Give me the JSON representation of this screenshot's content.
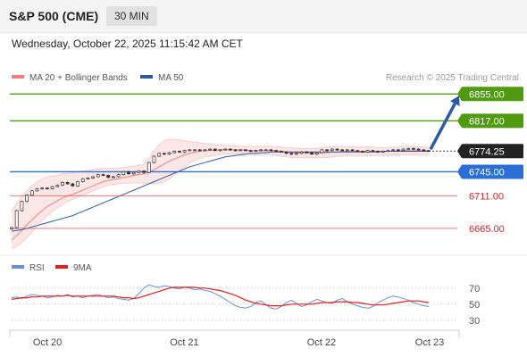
{
  "header": {
    "symbol": "S&P 500 (CME)",
    "timeframe": "30 MIN",
    "datetime": "Wednesday, October 22, 2025 11:15:42 AM CET"
  },
  "chart_data": {
    "type": "line",
    "price_panel": {
      "legend": [
        {
          "label": "MA 20 + Bollinger Bands",
          "color": "#f08080"
        },
        {
          "label": "MA 50",
          "color": "#2c5aa0"
        }
      ],
      "credit": "Research © 2025 Trading Central",
      "ylim": [
        6632,
        6868
      ],
      "current_price": {
        "value": 6774.25,
        "label": "6774.25",
        "color": "#222222"
      },
      "levels": [
        {
          "value": 6855.0,
          "label": "6855.00",
          "kind": "resistance",
          "color": "#4f9a0f"
        },
        {
          "value": 6817.0,
          "label": "6817.00",
          "kind": "resistance",
          "color": "#4f9a0f"
        },
        {
          "value": 6745.0,
          "label": "6745.00",
          "kind": "pivot",
          "color": "#2b6fd6"
        },
        {
          "value": 6711.0,
          "label": "6711.00",
          "kind": "support",
          "color": "#d94a4a"
        },
        {
          "value": 6665.0,
          "label": "6665.00",
          "kind": "support",
          "color": "#d94a4a"
        }
      ],
      "arrow": {
        "from_value": 6774.25,
        "to_value": 6855.0,
        "color": "#2c5aa0"
      },
      "close": [
        6666,
        6690,
        6703,
        6712,
        6718,
        6721,
        6722,
        6721,
        6724,
        6726,
        6730,
        6728,
        6725,
        6731,
        6735,
        6736,
        6738,
        6741,
        6740,
        6737,
        6738,
        6741,
        6745,
        6742,
        6744,
        6746,
        6744,
        6758,
        6767,
        6771,
        6770,
        6772,
        6774,
        6773,
        6775,
        6776,
        6776,
        6775,
        6776,
        6777,
        6775,
        6776,
        6777,
        6776,
        6775,
        6776,
        6775,
        6774,
        6775,
        6776,
        6776,
        6775,
        6774,
        6773,
        6771,
        6770,
        6771,
        6773,
        6772,
        6770,
        6772,
        6776,
        6775,
        6777,
        6776,
        6775,
        6776,
        6775,
        6774,
        6773,
        6775,
        6774,
        6773,
        6774,
        6775,
        6776,
        6775,
        6777,
        6778,
        6777,
        6776,
        6775,
        6774
      ],
      "ma20": [
        6648,
        6655,
        6662,
        6670,
        6677,
        6684,
        6690,
        6696,
        6700,
        6704,
        6708,
        6711,
        6713,
        6716,
        6719,
        6722,
        6725,
        6728,
        6731,
        6733,
        6734,
        6735,
        6737,
        6738,
        6740,
        6741,
        6742,
        6744,
        6748,
        6752,
        6756,
        6760,
        6763,
        6766,
        6769,
        6771,
        6773,
        6774,
        6775,
        6775,
        6776,
        6776,
        6776,
        6776,
        6776,
        6776,
        6776,
        6775,
        6775,
        6775,
        6775,
        6775,
        6775,
        6774,
        6773,
        6772,
        6772,
        6772,
        6772,
        6771,
        6771,
        6772,
        6772,
        6773,
        6773,
        6774,
        6774,
        6774,
        6774,
        6774,
        6774,
        6774,
        6774,
        6774,
        6774,
        6774,
        6774,
        6775,
        6775,
        6775,
        6775,
        6775,
        6775
      ],
      "bb_upper": [
        6690,
        6700,
        6710,
        6718,
        6725,
        6731,
        6735,
        6738,
        6739,
        6740,
        6742,
        6743,
        6744,
        6745,
        6746,
        6747,
        6748,
        6749,
        6750,
        6750,
        6750,
        6750,
        6751,
        6752,
        6753,
        6754,
        6756,
        6764,
        6774,
        6783,
        6789,
        6791,
        6791,
        6790,
        6789,
        6788,
        6787,
        6786,
        6785,
        6784,
        6783,
        6783,
        6782,
        6782,
        6782,
        6781,
        6781,
        6781,
        6781,
        6781,
        6781,
        6781,
        6780,
        6780,
        6779,
        6779,
        6778,
        6778,
        6778,
        6778,
        6778,
        6779,
        6780,
        6780,
        6781,
        6781,
        6780,
        6780,
        6780,
        6780,
        6780,
        6780,
        6779,
        6779,
        6779,
        6779,
        6780,
        6781,
        6781,
        6781,
        6780,
        6780,
        6779
      ],
      "bb_lower": [
        6636,
        6640,
        6645,
        6652,
        6660,
        6668,
        6676,
        6683,
        6689,
        6694,
        6699,
        6703,
        6706,
        6709,
        6712,
        6715,
        6718,
        6721,
        6724,
        6726,
        6727,
        6728,
        6729,
        6729,
        6729,
        6729,
        6729,
        6728,
        6728,
        6729,
        6731,
        6735,
        6740,
        6746,
        6752,
        6757,
        6761,
        6764,
        6766,
        6767,
        6768,
        6769,
        6770,
        6770,
        6770,
        6771,
        6771,
        6770,
        6769,
        6769,
        6769,
        6769,
        6768,
        6767,
        6766,
        6765,
        6765,
        6765,
        6765,
        6765,
        6765,
        6765,
        6765,
        6766,
        6767,
        6767,
        6768,
        6768,
        6768,
        6768,
        6768,
        6768,
        6768,
        6768,
        6768,
        6769,
        6769,
        6769,
        6769,
        6769,
        6769,
        6769,
        6769
      ],
      "ma50": [
        6661,
        6662,
        6663,
        6665,
        6667,
        6669,
        6671,
        6673,
        6675,
        6677,
        6679,
        6681,
        6683,
        6686,
        6689,
        6692,
        6695,
        6698,
        6701,
        6704,
        6707,
        6710,
        6713,
        6716,
        6719,
        6722,
        6725,
        6728,
        6731,
        6734,
        6737,
        6740,
        6743,
        6746,
        6749,
        6752,
        6754,
        6756,
        6758,
        6760,
        6762,
        6764,
        6766,
        6767,
        6768,
        6769,
        6770,
        6771,
        6771,
        6772,
        6772,
        6773,
        6773,
        6773,
        6773,
        6773,
        6773,
        6773,
        6773,
        6773,
        6773,
        6773,
        6773,
        6773,
        6773,
        6773,
        6773,
        6773,
        6773,
        6773,
        6773,
        6773,
        6773,
        6774,
        6774,
        6774,
        6774,
        6774,
        6774,
        6774,
        6774,
        6774,
        6774
      ]
    },
    "rsi_panel": {
      "legend": [
        {
          "label": "RSI",
          "color": "#6a8fd8"
        },
        {
          "label": "9MA",
          "color": "#e02020"
        }
      ],
      "ylim": [
        22,
        82
      ],
      "ticks": [
        70,
        50,
        30
      ],
      "rsi": [
        58,
        59,
        57,
        60,
        62,
        61,
        60,
        58,
        59,
        61,
        60,
        62,
        59,
        60,
        58,
        60,
        61,
        62,
        60,
        58,
        59,
        57,
        56,
        55,
        57,
        63,
        70,
        74,
        72,
        71,
        73,
        72,
        70,
        69,
        71,
        70,
        68,
        69,
        67,
        66,
        63,
        60,
        56,
        52,
        48,
        46,
        45,
        47,
        52,
        54,
        49,
        45,
        44,
        47,
        52,
        55,
        51,
        47,
        49,
        53,
        56,
        54,
        52,
        51,
        55,
        57,
        53,
        50,
        48,
        46,
        45,
        47,
        52,
        55,
        58,
        60,
        59,
        57,
        55,
        52,
        50,
        48,
        47
      ],
      "rsi_ma": [
        56,
        57,
        58,
        58,
        59,
        59,
        60,
        60,
        60,
        60,
        60,
        61,
        60,
        60,
        60,
        60,
        60,
        60,
        60,
        60,
        60,
        59,
        58,
        58,
        57,
        58,
        60,
        62,
        64,
        66,
        68,
        70,
        71,
        71,
        71,
        71,
        71,
        70,
        70,
        69,
        68,
        67,
        65,
        63,
        61,
        58,
        55,
        53,
        51,
        50,
        49,
        48,
        48,
        48,
        49,
        50,
        50,
        50,
        50,
        50,
        51,
        52,
        52,
        52,
        53,
        53,
        53,
        52,
        52,
        51,
        50,
        49,
        49,
        49,
        50,
        51,
        52,
        53,
        54,
        54,
        54,
        53,
        52
      ]
    },
    "x_axis": {
      "ticks": [
        {
          "label": "Oct 20",
          "index": 6
        },
        {
          "label": "Oct 21",
          "index": 29
        },
        {
          "label": "Oct 22",
          "index": 52
        },
        {
          "label": "Oct 23",
          "index": 63
        }
      ]
    }
  }
}
